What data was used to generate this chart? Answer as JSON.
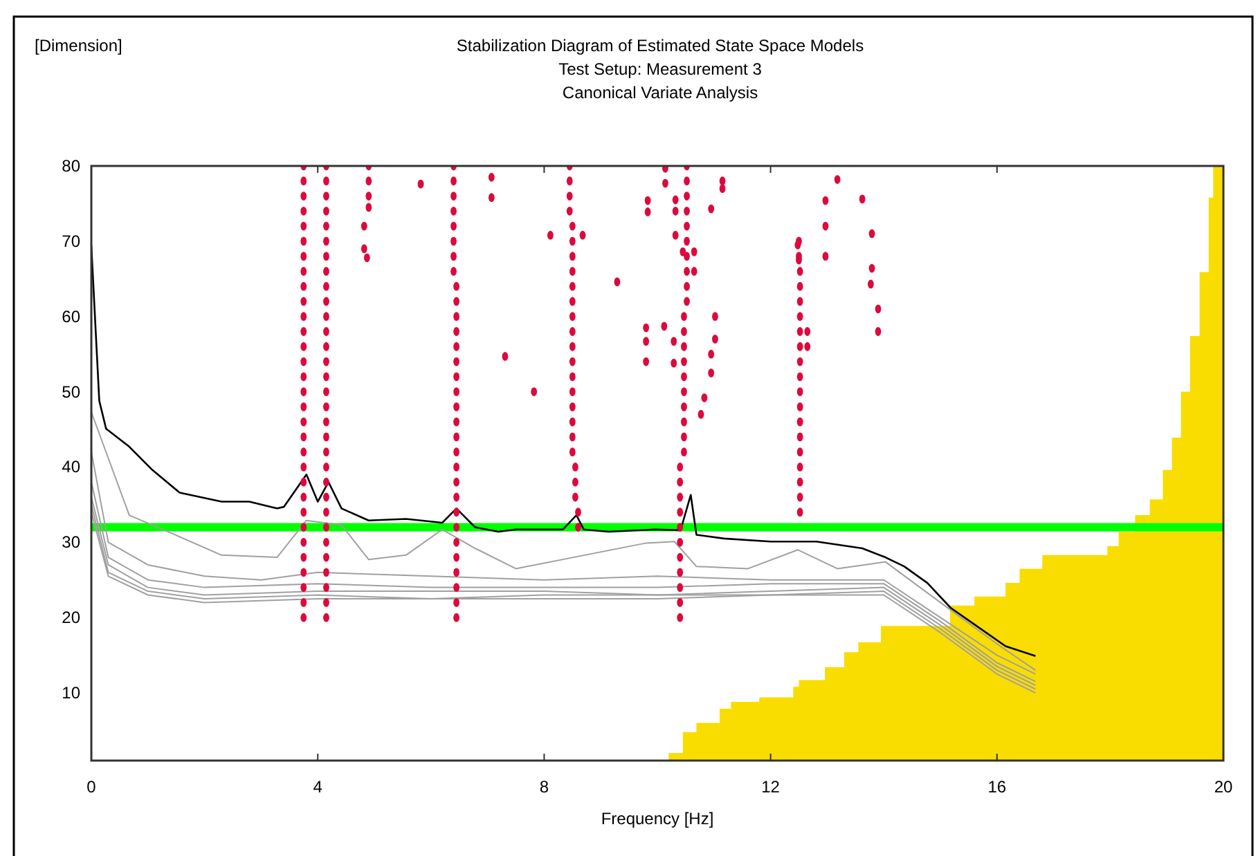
{
  "chart_data": {
    "type": "line",
    "title": "Stabilization Diagram of Estimated State Space Models",
    "subtitle": "Test Setup: Measurement 3\nCanonical Variate Analysis",
    "annotations": [
      "[Dimension]"
    ],
    "xlabel": "Frequency [Hz]",
    "xlim": [
      0,
      20
    ],
    "xticks": [
      0,
      4,
      8,
      12,
      16,
      20
    ],
    "ylim": [
      1,
      80
    ],
    "yticks": [
      10,
      20,
      30,
      40,
      50,
      60,
      70,
      80
    ],
    "grid": false,
    "ref_lines": [
      {
        "axis": "y",
        "value": 32,
        "color": "#00ff00"
      }
    ],
    "series": [
      {
        "type": "area",
        "color": "#f9dd00",
        "x": [
          10.04,
          10.2,
          10.45,
          10.69,
          11.1,
          11.3,
          11.8,
          12.4,
          12.5,
          12.96,
          13.3,
          13.55,
          13.95,
          15.17,
          15.6,
          16.15,
          16.4,
          16.8,
          17.95,
          18.15,
          18.44,
          18.7,
          18.93,
          19.09,
          19.25,
          19.41,
          19.58,
          19.74,
          19.82,
          20
        ],
        "values": [
          1,
          2,
          4.8,
          6,
          7.9,
          8.8,
          9.4,
          10.8,
          11.7,
          13.4,
          15.4,
          16.7,
          18.9,
          21.6,
          22.8,
          24.6,
          26.5,
          28.3,
          29.5,
          31.4,
          33.6,
          35.7,
          39.6,
          43.9,
          50,
          57.4,
          65.9,
          75.8,
          80,
          80
        ]
      },
      {
        "type": "line",
        "color": "#a0a0a0",
        "x": [
          0,
          0.67,
          1.48,
          2.3,
          3.28,
          3.8,
          4.42,
          4.9,
          5.56,
          6.2,
          6.78,
          7.5,
          9.8,
          10.3,
          10.69,
          11.6,
          12.48,
          13.18,
          14.03,
          15,
          16,
          16.68
        ],
        "values": [
          47.3,
          33.6,
          31,
          28.3,
          28,
          32.9,
          32.3,
          27.7,
          28.3,
          31.7,
          29.2,
          26.5,
          29.9,
          30.1,
          26.8,
          26.5,
          29,
          26.5,
          27.4,
          22,
          16.5,
          13
        ]
      },
      {
        "type": "line",
        "color": "#a0a0a0",
        "x": [
          0,
          0.3,
          1,
          2,
          3,
          4,
          6,
          8,
          10,
          12,
          14,
          15,
          16,
          16.68
        ],
        "values": [
          42,
          30,
          27,
          25.5,
          25,
          26,
          25.5,
          25,
          25.5,
          25,
          25,
          20,
          15,
          12.5
        ]
      },
      {
        "type": "line",
        "color": "#a0a0a0",
        "x": [
          0,
          0.3,
          1,
          2,
          4,
          6,
          8,
          10,
          12,
          14,
          15,
          16,
          16.68
        ],
        "values": [
          38,
          28,
          25,
          24,
          24.5,
          24,
          24,
          24,
          24.5,
          24.5,
          19.5,
          14,
          11.5
        ]
      },
      {
        "type": "line",
        "color": "#a0a0a0",
        "x": [
          0,
          0.3,
          1,
          2,
          4,
          6,
          8,
          10,
          12,
          14,
          15,
          16,
          16.68
        ],
        "values": [
          36,
          27,
          24,
          23,
          23.5,
          23.5,
          23.5,
          23,
          23.5,
          24,
          19,
          13.5,
          11
        ]
      },
      {
        "type": "line",
        "color": "#a0a0a0",
        "x": [
          0,
          0.3,
          1,
          2,
          4,
          6,
          8,
          10,
          12,
          14,
          15,
          16,
          16.68
        ],
        "values": [
          35,
          26,
          23.5,
          22.5,
          23,
          22.5,
          23,
          23,
          23,
          23.5,
          18.5,
          13,
          10.5
        ]
      },
      {
        "type": "line",
        "color": "#a0a0a0",
        "x": [
          0,
          0.3,
          1,
          2,
          4,
          6,
          8,
          10,
          12,
          14,
          15,
          16,
          16.68
        ],
        "values": [
          34,
          25.5,
          23,
          22,
          22.5,
          22.5,
          22.5,
          22.5,
          23,
          23,
          18,
          12.5,
          10
        ]
      },
      {
        "color": "#000000",
        "x": [
          0,
          0.14,
          0.26,
          0.67,
          1.08,
          1.56,
          2.3,
          2.79,
          3.28,
          3.4,
          3.8,
          4,
          4.19,
          4.42,
          4.9,
          5.56,
          6.2,
          6.45,
          6.78,
          7.19,
          7.5,
          8.33,
          8.57,
          8.7,
          9.14,
          9.96,
          10.41,
          10.59,
          10.69,
          11.18,
          12,
          12.81,
          13.62,
          14.03,
          14.36,
          14.77,
          15.18,
          15.58,
          16.15,
          16.68
        ],
        "values": [
          69.4,
          48.8,
          45.1,
          42.7,
          39.6,
          36.6,
          35.4,
          35.4,
          34.5,
          34.7,
          39,
          35.4,
          38,
          34.5,
          32.9,
          33.1,
          32.6,
          34.5,
          32,
          31.4,
          31.7,
          31.7,
          33.6,
          31.7,
          31.4,
          31.7,
          31.6,
          36.3,
          31,
          30.5,
          30.1,
          30.1,
          29.2,
          28,
          26.8,
          24.6,
          21.3,
          19.2,
          16.2,
          14.9
        ]
      },
      {
        "type": "scatter",
        "color": "#dc0a3c",
        "x": [
          3.75,
          3.75,
          3.75,
          3.75,
          3.75,
          3.75,
          3.75,
          3.75,
          3.75,
          3.75,
          3.75,
          3.75,
          3.75,
          3.75,
          3.75,
          3.75,
          3.75,
          3.75,
          3.75,
          3.75,
          3.75,
          3.75,
          3.75,
          3.75,
          3.75,
          3.75,
          3.75,
          3.75,
          3.75,
          3.75,
          3.75
        ],
        "values": [
          20,
          22,
          24,
          26,
          28,
          30,
          32,
          34,
          36,
          38,
          40,
          42,
          44,
          46,
          48,
          50,
          52,
          54,
          56,
          58,
          60,
          62,
          64,
          66,
          68,
          70,
          72,
          74,
          76,
          78,
          80
        ]
      },
      {
        "type": "scatter",
        "color": "#dc0a3c",
        "x": [
          4.15,
          4.15,
          4.15,
          4.15,
          4.15,
          4.15,
          4.15,
          4.15,
          4.15,
          4.15,
          4.15,
          4.15,
          4.15,
          4.15,
          4.15,
          4.15,
          4.15,
          4.15,
          4.15,
          4.15,
          4.15,
          4.15,
          4.15,
          4.15,
          4.15,
          4.15,
          4.15,
          4.15,
          4.15,
          4.15,
          4.15
        ],
        "values": [
          20,
          22,
          24,
          26,
          28,
          30,
          32,
          34,
          36,
          38,
          40,
          42,
          44,
          46,
          48,
          50,
          52,
          54,
          56,
          58,
          60,
          62,
          64,
          66,
          68,
          70,
          72,
          74,
          76,
          78,
          80
        ]
      },
      {
        "type": "scatter",
        "color": "#dc0a3c",
        "x": [
          6.45,
          6.45,
          6.45,
          6.45,
          6.45,
          6.45,
          6.45,
          6.45,
          6.45,
          6.45,
          6.45,
          6.45,
          6.45,
          6.45,
          6.45,
          6.45,
          6.45,
          6.45,
          6.45,
          6.45,
          6.45,
          6.45,
          6.45,
          6.4,
          6.4,
          6.4,
          6.4,
          6.4,
          6.4,
          6.4,
          6.4
        ],
        "values": [
          20,
          22,
          24,
          26,
          28,
          30,
          32,
          34,
          36,
          38,
          40,
          42,
          44,
          46,
          48,
          50,
          52,
          54,
          56,
          58,
          60,
          62,
          64,
          66,
          68,
          70,
          72,
          74,
          76,
          78,
          80
        ]
      },
      {
        "type": "scatter",
        "color": "#dc0a3c",
        "x": [
          8.6,
          8.6,
          8.55,
          8.55,
          8.55,
          8.5,
          8.5,
          8.5,
          8.5,
          8.5,
          8.5,
          8.5,
          8.5,
          8.5,
          8.5,
          8.5,
          8.5,
          8.5,
          8.5,
          8.5,
          8.5,
          8.45,
          8.45,
          8.45,
          8.45
        ],
        "values": [
          32,
          34,
          36,
          38,
          40,
          42,
          44,
          46,
          48,
          50,
          52,
          54,
          56,
          58,
          60,
          62,
          64,
          66,
          68,
          70,
          72,
          74,
          76,
          78,
          80
        ]
      },
      {
        "type": "scatter",
        "color": "#dc0a3c",
        "x": [
          10.4,
          10.4,
          10.4,
          10.4,
          10.4,
          10.4,
          10.4,
          10.4,
          10.4,
          10.4,
          10.4,
          10.47,
          10.47,
          10.47,
          10.47,
          10.47,
          10.47,
          10.47,
          10.47,
          10.47,
          10.47,
          10.52,
          10.52,
          10.52,
          10.52,
          10.52,
          10.52,
          10.52,
          10.52,
          10.52,
          10.52
        ],
        "values": [
          20,
          22,
          24,
          26,
          28,
          30,
          32,
          34,
          36,
          38,
          40,
          42,
          44,
          46,
          48,
          50,
          52,
          54,
          56,
          58,
          60,
          62,
          64,
          66,
          68,
          70,
          72,
          74,
          76,
          78,
          80
        ]
      },
      {
        "type": "scatter",
        "color": "#dc0a3c",
        "x": [
          12.52,
          12.52,
          12.52,
          12.52,
          12.52,
          12.52,
          12.52,
          12.52,
          12.52,
          12.52,
          12.52,
          12.52,
          12.52,
          12.52,
          12.52,
          12.52,
          12.52,
          12.5,
          12.5
        ],
        "values": [
          34,
          36,
          38,
          40,
          42,
          44,
          46,
          48,
          50,
          52,
          54,
          56,
          58,
          60,
          62,
          64,
          66,
          68,
          70
        ]
      },
      {
        "type": "scatter",
        "color": "#dc0a3c",
        "x": [
          4.9,
          4.9,
          4.9,
          4.9,
          4.82,
          4.82,
          4.87,
          5.82,
          7.07,
          7.07,
          8.11,
          8.68,
          9.29,
          7.31,
          7.82,
          9.8,
          9.8,
          9.8,
          10.12,
          10.29,
          10.29,
          9.83,
          9.83,
          10.14,
          10.14,
          10.32,
          10.32,
          10.32,
          10.45,
          10.65,
          10.65,
          10.95,
          11.15,
          11.15,
          11.02,
          11.02,
          10.95,
          10.95,
          10.83,
          10.77,
          12.48,
          12.5,
          12.65,
          12.65,
          12.97,
          12.97,
          12.97,
          13.18,
          13.62,
          13.79,
          13.79,
          13.77,
          13.9,
          13.9
        ],
        "values": [
          80,
          78,
          76,
          74.5,
          72,
          69,
          67.8,
          77.6,
          78.5,
          75.8,
          70.8,
          70.8,
          64.6,
          54.7,
          50,
          58.5,
          56.7,
          54,
          58.7,
          56.7,
          53.8,
          75.4,
          73.9,
          79.7,
          77.7,
          75.5,
          74,
          70.8,
          68.6,
          68.6,
          66,
          74.3,
          78,
          77,
          60,
          57,
          55,
          52.5,
          49.2,
          47,
          69.5,
          67.5,
          58,
          56,
          75.4,
          72,
          68,
          78.2,
          75.6,
          71,
          66.4,
          64.3,
          61,
          58
        ]
      }
    ]
  }
}
